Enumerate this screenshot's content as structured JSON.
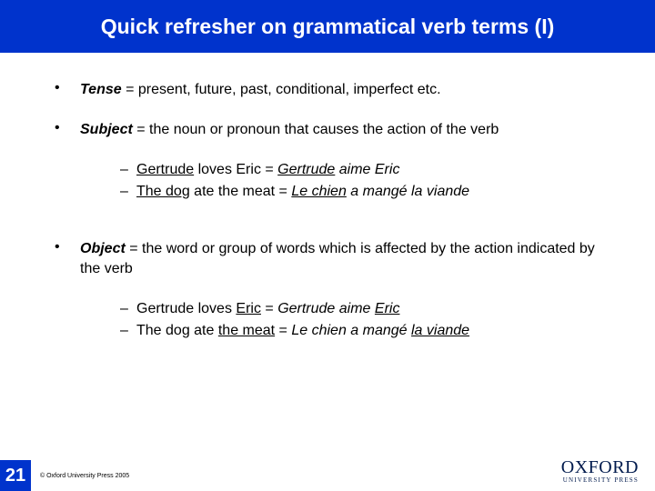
{
  "colors": {
    "header_bg": "#0033cc",
    "header_text": "#ffffff",
    "body_bg": "#ffffff",
    "body_text": "#000000",
    "logo_color": "#001a4d"
  },
  "title": "Quick refresher on grammatical verb terms (I)",
  "bullets": {
    "tense": {
      "term": "Tense",
      "rest": " = present, future, past, conditional, imperfect etc."
    },
    "subject": {
      "term": "Subject",
      "rest": " = the noun or pronoun that causes the action of the verb",
      "ex1": {
        "a_ul": "Gertrude",
        "b": " loves Eric = ",
        "c_ul_it": "Gertrude",
        "d_it": " aime Eric"
      },
      "ex2": {
        "a_ul": "The dog",
        "b": " ate the meat = ",
        "c_ul_it": "Le chien",
        "d_it": " a mangé la viande"
      }
    },
    "object": {
      "term": "Object",
      "rest": " = the word or group of words which is affected by the action indicated by the verb",
      "ex1": {
        "a": "Gertrude loves ",
        "b_ul": "Eric",
        "c": " = ",
        "d_it": "Gertrude aime ",
        "e_ul_it": "Eric"
      },
      "ex2": {
        "a": "The dog ate ",
        "b_ul": "the meat",
        "c": " = ",
        "d_it": "Le chien a mangé ",
        "e_ul_it": "la viande"
      }
    }
  },
  "footer": {
    "page": "21",
    "copyright": "© Oxford University Press 2005",
    "logo_main": "OXFORD",
    "logo_sub": "UNIVERSITY PRESS"
  }
}
